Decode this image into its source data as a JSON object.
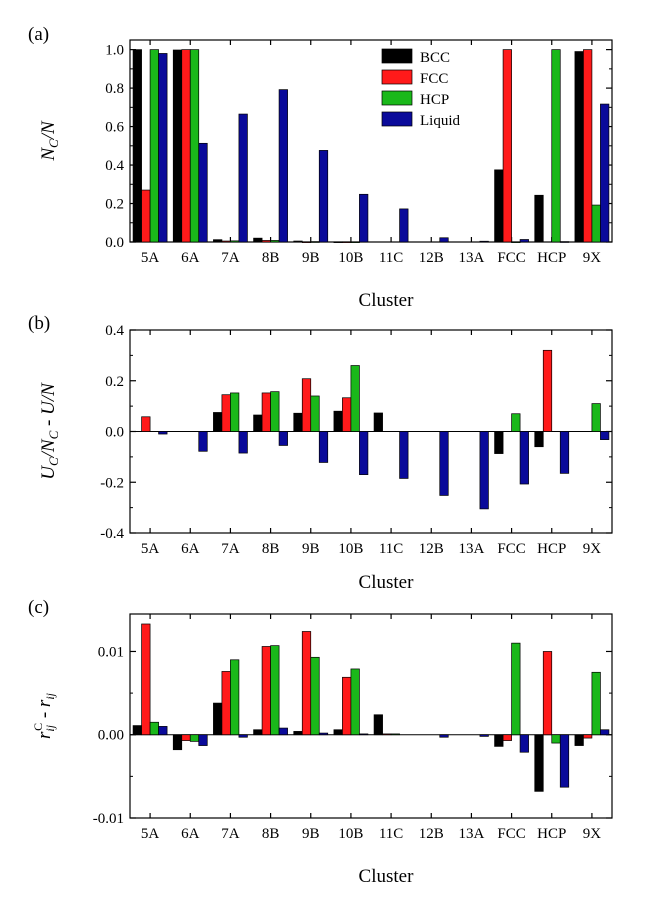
{
  "chart_data": [
    {
      "type": "bar",
      "panel_label": "(a)",
      "title": "",
      "xlabel": "Cluster",
      "ylabel_main": "N",
      "ylabel_sub": "C",
      "ylabel_tail": "/N",
      "categories": [
        "5A",
        "6A",
        "7A",
        "8B",
        "9B",
        "10B",
        "11C",
        "12B",
        "13A",
        "FCC",
        "HCP",
        "9X"
      ],
      "ylim": [
        0.0,
        1.05
      ],
      "yticks": [
        0.0,
        0.2,
        0.4,
        0.6,
        0.8,
        1.0
      ],
      "ytick_labels": [
        "0.0",
        "0.2",
        "0.4",
        "0.6",
        "0.8",
        "1.0"
      ],
      "legend": {
        "placement": "top-center",
        "entries": [
          "BCC",
          "FCC",
          "HCP",
          "Liquid"
        ]
      },
      "series": [
        {
          "name": "BCC",
          "color": "#000000",
          "values": [
            1.0,
            0.998,
            0.012,
            0.02,
            0.005,
            0.001,
            0.0,
            0.0,
            0.0,
            0.375,
            0.243,
            0.99
          ]
        },
        {
          "name": "FCC",
          "color": "#ff1a1a",
          "values": [
            0.27,
            1.0,
            0.005,
            0.008,
            0.001,
            0.001,
            0.0,
            0.0,
            0.0,
            1.0,
            0.0,
            1.0
          ]
        },
        {
          "name": "HCP",
          "color": "#1ab81a",
          "values": [
            1.0,
            1.0,
            0.006,
            0.008,
            0.002,
            0.001,
            0.0,
            0.0,
            0.0,
            0.001,
            1.0,
            0.192
          ]
        },
        {
          "name": "Liquid",
          "color": "#0a0a9a",
          "values": [
            0.98,
            0.513,
            0.665,
            0.792,
            0.476,
            0.248,
            0.172,
            0.022,
            0.004,
            0.013,
            0.002,
            0.717
          ]
        }
      ]
    },
    {
      "type": "bar",
      "panel_label": "(b)",
      "title": "",
      "xlabel": "Cluster",
      "ylabel_a": "U",
      "ylabel_a_sub": "C",
      "ylabel_b": "/N",
      "ylabel_b_sub": "C",
      "ylabel_c": " - U/N",
      "categories": [
        "5A",
        "6A",
        "7A",
        "8B",
        "9B",
        "10B",
        "11C",
        "12B",
        "13A",
        "FCC",
        "HCP",
        "9X"
      ],
      "ylim": [
        -0.4,
        0.4
      ],
      "yticks": [
        -0.4,
        -0.2,
        0.0,
        0.2,
        0.4
      ],
      "ytick_labels": [
        "-0.4",
        "-0.2",
        "0.0",
        "0.2",
        "0.4"
      ],
      "series": [
        {
          "name": "BCC",
          "color": "#000000",
          "values": [
            0.0,
            0.0,
            0.075,
            0.065,
            0.072,
            0.08,
            0.073,
            0.0,
            0.0,
            -0.087,
            -0.06,
            0.0
          ]
        },
        {
          "name": "FCC",
          "color": "#ff1a1a",
          "values": [
            0.058,
            0.0,
            0.145,
            0.152,
            0.208,
            0.133,
            0.0,
            0.0,
            0.0,
            0.0,
            0.32,
            0.0
          ]
        },
        {
          "name": "HCP",
          "color": "#1ab81a",
          "values": [
            0.0,
            0.0,
            0.152,
            0.157,
            0.14,
            0.26,
            0.0,
            0.0,
            0.0,
            0.07,
            0.0,
            0.11
          ]
        },
        {
          "name": "Liquid",
          "color": "#0a0a9a",
          "values": [
            -0.01,
            -0.078,
            -0.085,
            -0.055,
            -0.122,
            -0.17,
            -0.185,
            -0.252,
            -0.305,
            -0.207,
            -0.165,
            -0.032
          ]
        }
      ]
    },
    {
      "type": "bar",
      "panel_label": "(c)",
      "title": "",
      "xlabel": "Cluster",
      "ylabel_r1": "r",
      "ylabel_sub1": "ij",
      "ylabel_sup": "C",
      "ylabel_mid": " - ",
      "ylabel_r2": "r",
      "ylabel_sub2": "ij",
      "categories": [
        "5A",
        "6A",
        "7A",
        "8B",
        "9B",
        "10B",
        "11C",
        "12B",
        "13A",
        "FCC",
        "HCP",
        "9X"
      ],
      "ylim": [
        -0.01,
        0.0145
      ],
      "yticks": [
        -0.01,
        0.0,
        0.01
      ],
      "ytick_labels": [
        "-0.01",
        "0.00",
        "0.01"
      ],
      "series": [
        {
          "name": "BCC",
          "color": "#000000",
          "values": [
            0.0011,
            -0.0018,
            0.0038,
            0.0006,
            0.0004,
            0.0006,
            0.0024,
            0.0,
            0.0,
            -0.0014,
            -0.0068,
            -0.0013
          ]
        },
        {
          "name": "FCC",
          "color": "#ff1a1a",
          "values": [
            0.0133,
            -0.0007,
            0.0076,
            0.0106,
            0.0124,
            0.0069,
            0.0001,
            0.0,
            0.0,
            -0.0007,
            0.01,
            -0.0004
          ]
        },
        {
          "name": "HCP",
          "color": "#1ab81a",
          "values": [
            0.0015,
            -0.0008,
            0.009,
            0.0107,
            0.0093,
            0.0079,
            0.0001,
            0.0,
            0.0,
            0.011,
            -0.001,
            0.0075
          ]
        },
        {
          "name": "Liquid",
          "color": "#0a0a9a",
          "values": [
            0.001,
            -0.0013,
            -0.0003,
            0.0008,
            0.0002,
            0.0001,
            0.0,
            -0.0003,
            -0.0002,
            -0.0021,
            -0.0063,
            0.0006
          ]
        }
      ]
    }
  ]
}
